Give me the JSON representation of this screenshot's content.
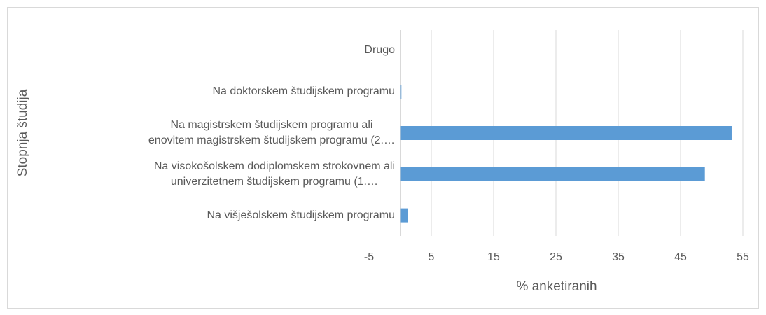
{
  "chart_data": {
    "type": "bar",
    "orientation": "horizontal",
    "y_axis_label": "Stopnja študija",
    "x_axis_label": "% anketiranih",
    "categories": [
      "Na višješolskem študijskem programu",
      "Na visokošolskem dodiplomskem strokovnem ali\nuniverzitetnem študijskem programu (1.…",
      "Na magistrskem študijskem programu ali\nenovitem magistrskem študijskem programu (2.…",
      "Na doktorskem študijskem programu",
      "Drugo"
    ],
    "values": [
      1.2,
      48.9,
      53.2,
      0.2,
      0
    ],
    "color": "#5b9bd5",
    "xlim": [
      -5,
      55
    ],
    "xticks": [
      -5,
      5,
      15,
      25,
      35,
      45,
      55
    ],
    "grid": true
  }
}
